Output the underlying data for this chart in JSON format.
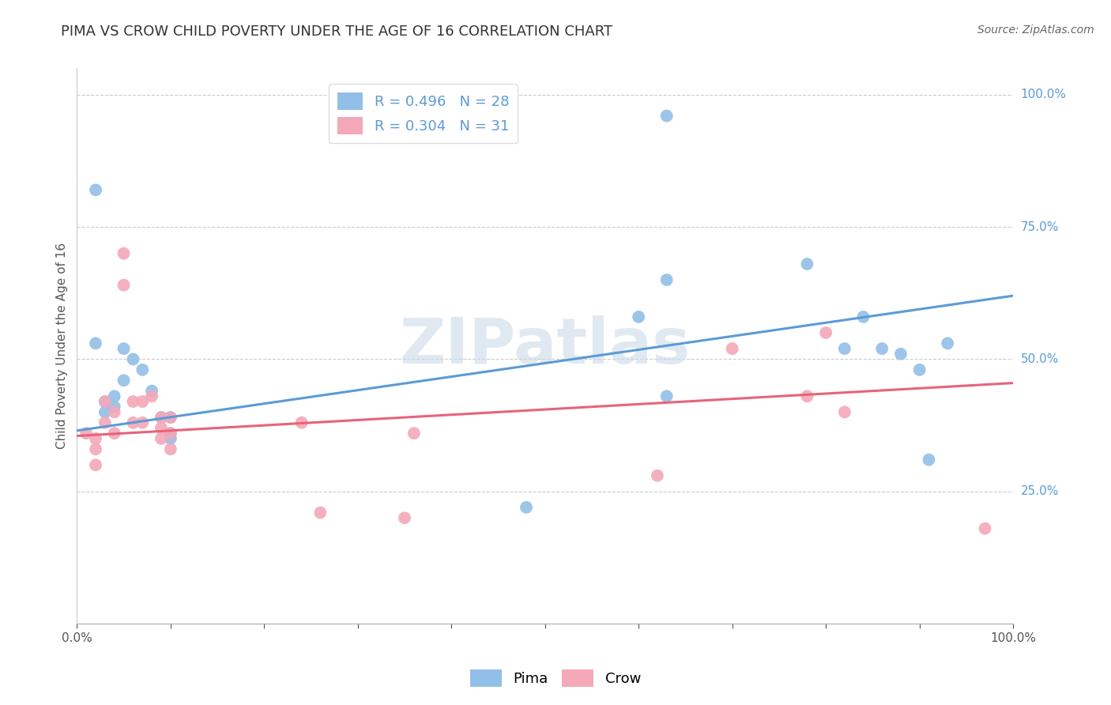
{
  "title": "PIMA VS CROW CHILD POVERTY UNDER THE AGE OF 16 CORRELATION CHART",
  "source": "Source: ZipAtlas.com",
  "ylabel": "Child Poverty Under the Age of 16",
  "pima_R": 0.496,
  "pima_N": 28,
  "crow_R": 0.304,
  "crow_N": 31,
  "pima_color": "#92bfe8",
  "crow_color": "#f4a8b8",
  "pima_line_color": "#5b9bd5",
  "crow_line_color": "#e8637a",
  "background_color": "#ffffff",
  "watermark_text": "ZIPatlas",
  "pima_x": [
    0.02,
    0.02,
    0.03,
    0.03,
    0.04,
    0.04,
    0.05,
    0.05,
    0.06,
    0.07,
    0.08,
    0.09,
    0.1,
    0.1,
    0.1,
    0.48,
    0.6,
    0.63,
    0.63,
    0.78,
    0.82,
    0.84,
    0.86,
    0.88,
    0.9,
    0.91,
    0.93,
    0.63
  ],
  "pima_y": [
    0.82,
    0.53,
    0.42,
    0.4,
    0.43,
    0.41,
    0.52,
    0.46,
    0.5,
    0.48,
    0.44,
    0.39,
    0.39,
    0.36,
    0.35,
    0.22,
    0.58,
    0.65,
    0.96,
    0.68,
    0.52,
    0.58,
    0.52,
    0.51,
    0.48,
    0.31,
    0.53,
    0.43
  ],
  "crow_x": [
    0.01,
    0.02,
    0.02,
    0.02,
    0.03,
    0.03,
    0.04,
    0.04,
    0.05,
    0.05,
    0.06,
    0.06,
    0.07,
    0.07,
    0.08,
    0.09,
    0.09,
    0.09,
    0.1,
    0.1,
    0.1,
    0.24,
    0.26,
    0.35,
    0.36,
    0.62,
    0.7,
    0.78,
    0.8,
    0.82,
    0.97
  ],
  "crow_y": [
    0.36,
    0.35,
    0.33,
    0.3,
    0.42,
    0.38,
    0.4,
    0.36,
    0.7,
    0.64,
    0.42,
    0.38,
    0.42,
    0.38,
    0.43,
    0.39,
    0.37,
    0.35,
    0.39,
    0.36,
    0.33,
    0.38,
    0.21,
    0.2,
    0.36,
    0.28,
    0.52,
    0.43,
    0.55,
    0.4,
    0.18
  ],
  "pima_trend": [
    0.365,
    0.62
  ],
  "crow_trend": [
    0.355,
    0.455
  ],
  "xlim": [
    0.0,
    1.0
  ],
  "ylim": [
    0.0,
    1.05
  ],
  "title_fontsize": 13,
  "label_fontsize": 11,
  "tick_fontsize": 11,
  "source_fontsize": 10
}
